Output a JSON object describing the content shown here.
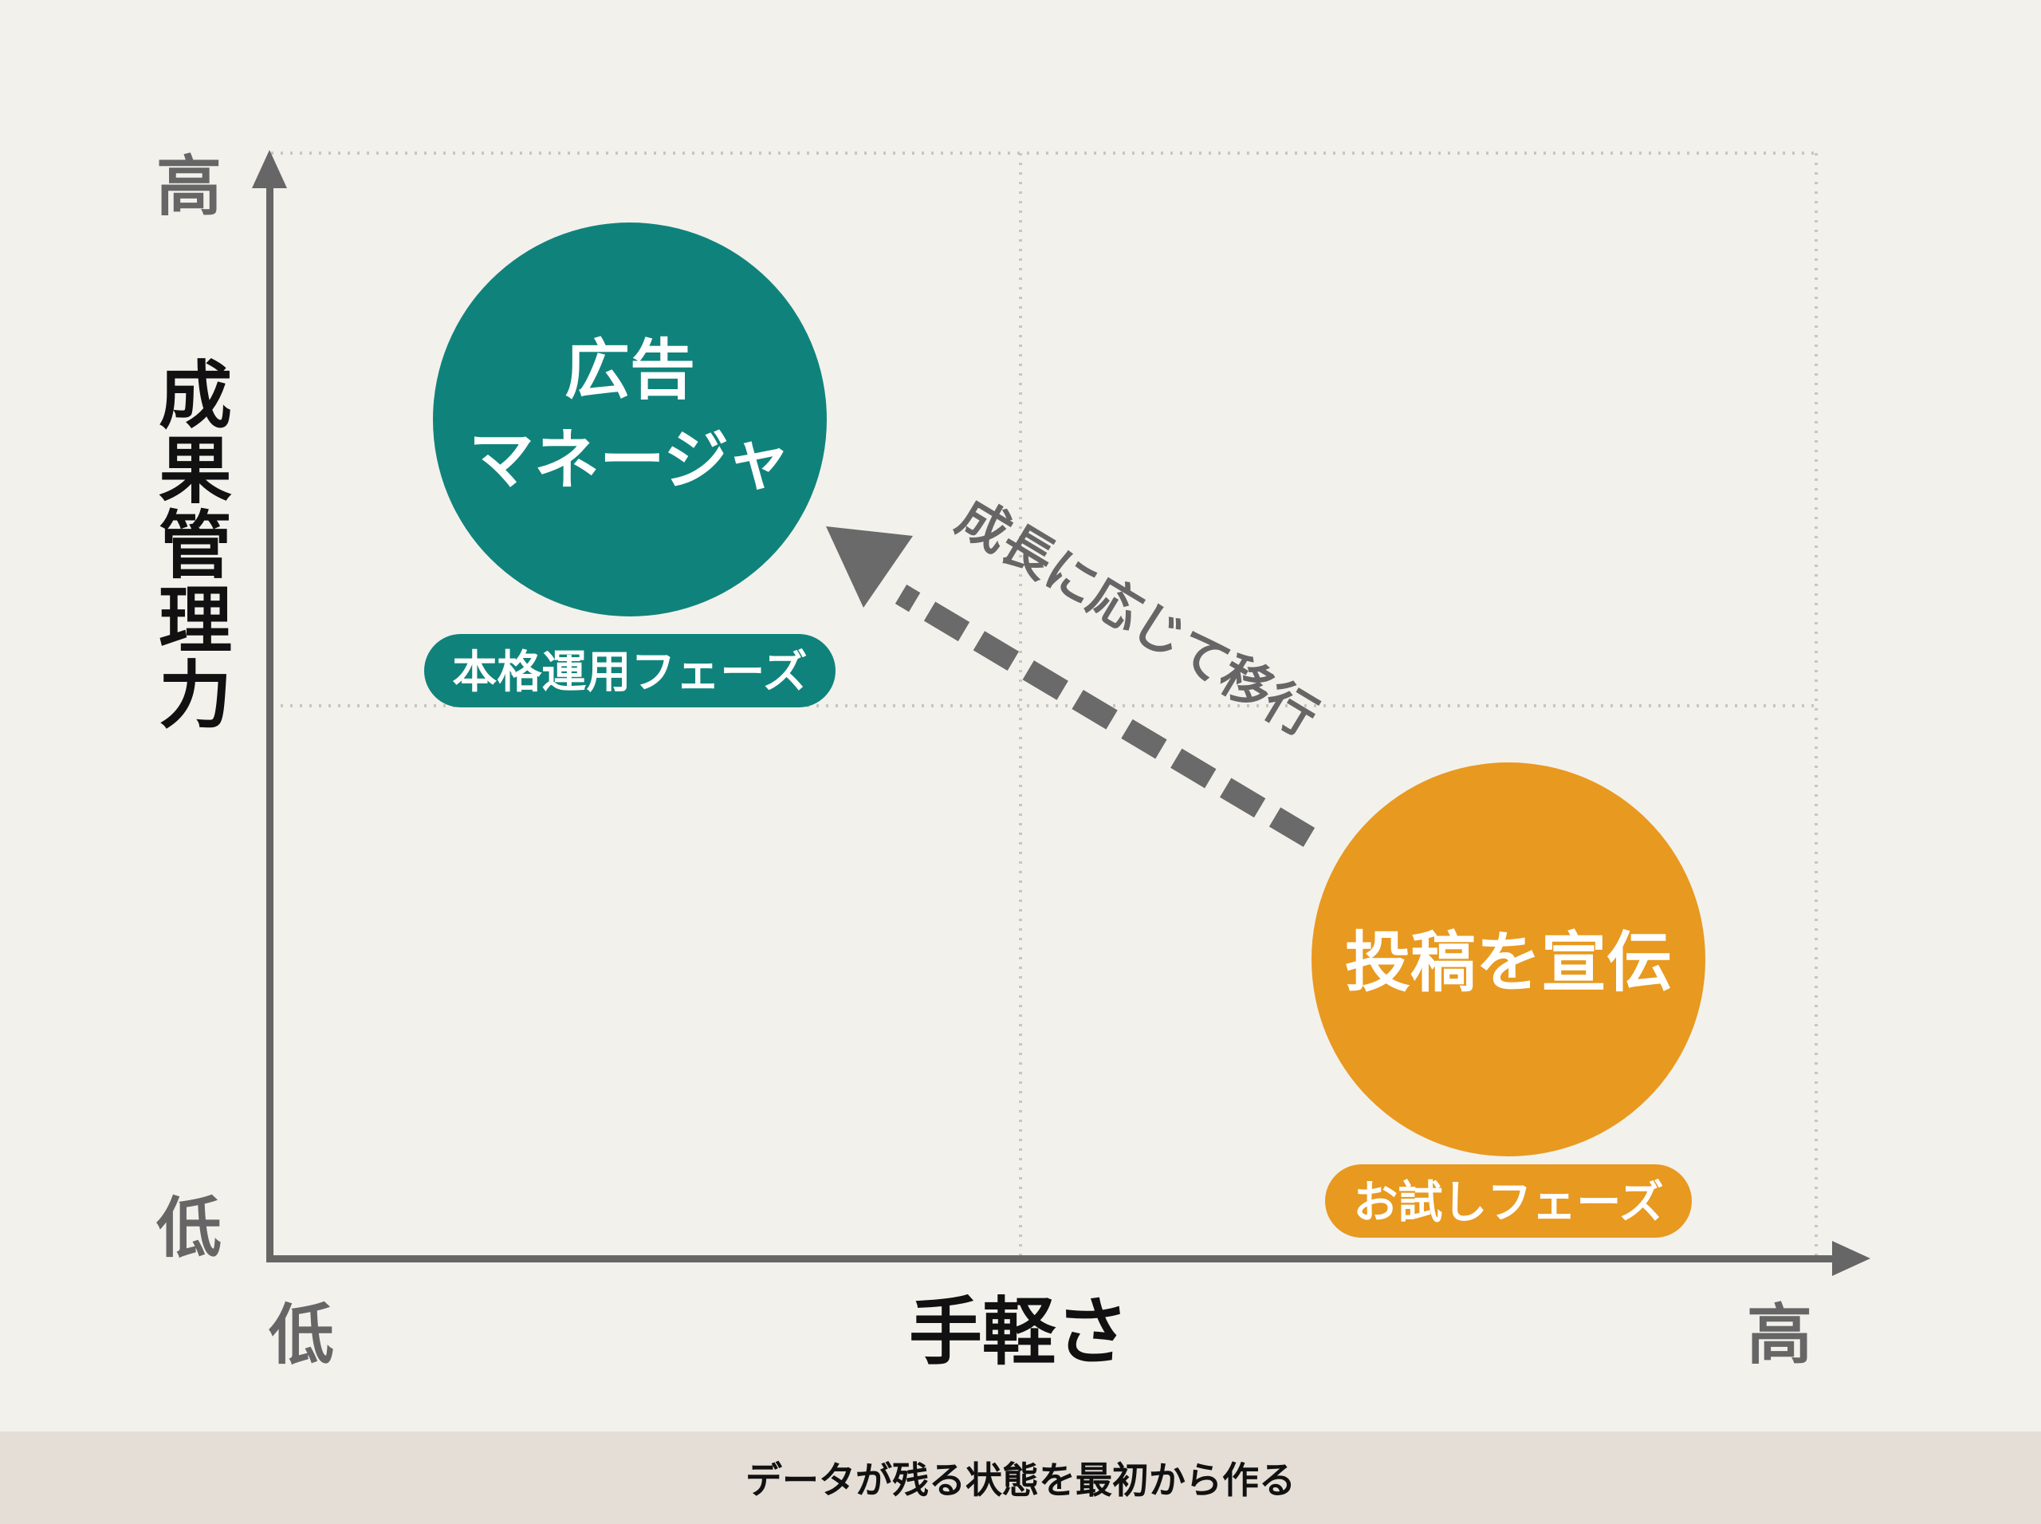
{
  "axes": {
    "y_title": "成果管理力",
    "x_title": "手軽さ",
    "y_high": "高",
    "y_low": "低",
    "x_low": "低",
    "x_high": "高"
  },
  "nodes": {
    "ads_manager": {
      "title_line1": "広告",
      "title_line2": "マネージャ",
      "phase": "本格運用フェーズ",
      "color": "#0f837b",
      "quadrant": "top-left"
    },
    "boost_post": {
      "title": "投稿を宣伝",
      "phase": "お試しフェーズ",
      "color": "#e8991f",
      "quadrant": "bottom-right"
    }
  },
  "migration_arrow": {
    "label": "成長に応じて移行",
    "from": "boost_post",
    "to": "ads_manager",
    "color": "#6a6a6a"
  },
  "footer": {
    "caption": "データが残る状態を最初から作る"
  },
  "colors": {
    "background": "#f3f1ec",
    "axis": "#666666",
    "grid": "#c9c6c0",
    "footer_band": "#e4ded6"
  }
}
